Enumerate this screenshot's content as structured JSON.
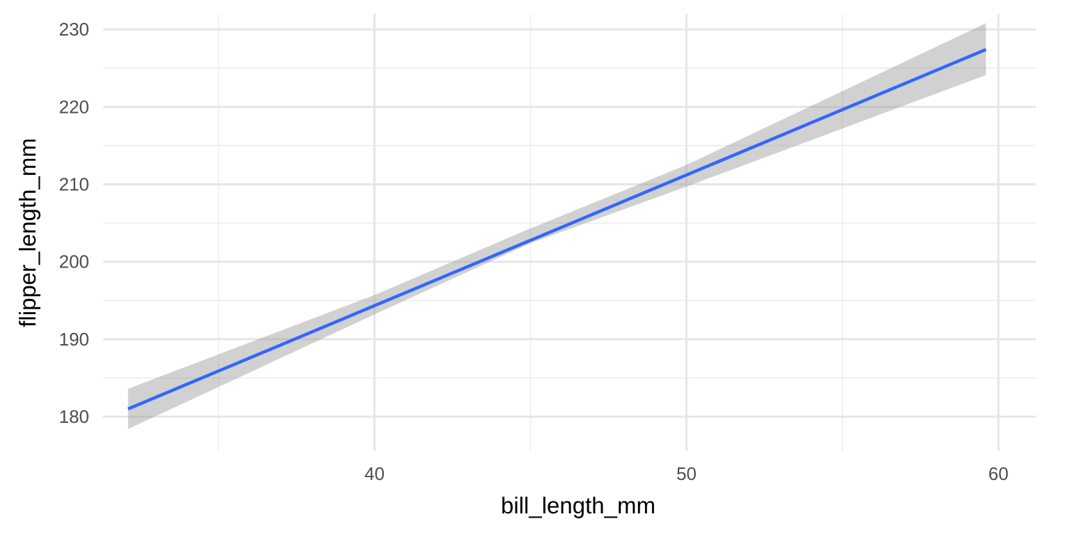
{
  "chart_data": {
    "type": "line",
    "title": "",
    "xlabel": "bill_length_mm",
    "ylabel": "flipper_length_mm",
    "xlim": [
      31.3,
      61.2
    ],
    "ylim": [
      175.6,
      232.0
    ],
    "x_ticks": [
      40,
      50,
      60
    ],
    "x_minor_ticks": [
      35,
      45,
      55
    ],
    "y_ticks": [
      180,
      190,
      200,
      210,
      220,
      230
    ],
    "y_minor_ticks": [
      185,
      195,
      205,
      215,
      225
    ],
    "grid": true,
    "legend": "none",
    "series": [
      {
        "kind": "fit-line",
        "color": "#3366FF",
        "x": [
          32.1,
          59.6
        ],
        "y": [
          181.0,
          227.4
        ]
      }
    ],
    "confidence_band": {
      "color": "#999999",
      "x": [
        32.1,
        40.0,
        45.0,
        50.0,
        59.6
      ],
      "lower": [
        178.4,
        193.2,
        202.4,
        209.7,
        224.1
      ],
      "upper": [
        183.6,
        195.7,
        204.3,
        212.5,
        230.8
      ]
    }
  }
}
